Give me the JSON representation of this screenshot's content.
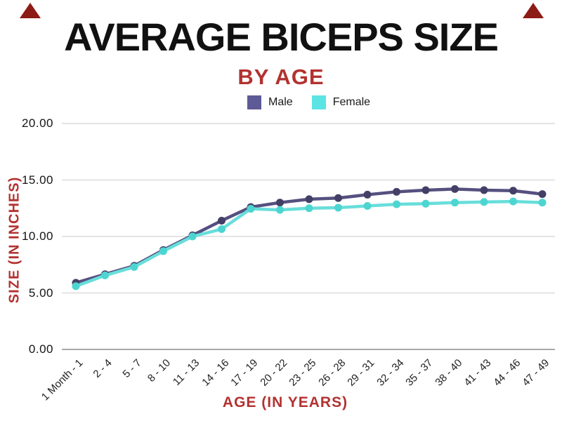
{
  "page": {
    "title": "AVERAGE BICEPS SIZE",
    "subtitle": "BY AGE",
    "title_color": "#111111",
    "accent_color": "#b23230",
    "corner_triangle_color": "#8c1c15",
    "background": "#ffffff"
  },
  "legend": {
    "items": [
      {
        "label": "Male",
        "color": "#5e5a96"
      },
      {
        "label": "Female",
        "color": "#5ce4e4"
      }
    ]
  },
  "chart_data": {
    "type": "line",
    "title": "AVERAGE BICEPS SIZE",
    "subtitle": "BY AGE",
    "xlabel": "AGE (IN YEARS)",
    "ylabel": "SIZE (IN INCHES)",
    "categories": [
      "1 Month - 1",
      "2 - 4",
      "5 - 7",
      "8 - 10",
      "11 - 13",
      "14 - 16",
      "17 - 19",
      "20 - 22",
      "23 - 25",
      "26 - 28",
      "29 - 31",
      "32 - 34",
      "35 - 37",
      "38 - 40",
      "41 - 43",
      "44 - 46",
      "47 - 49"
    ],
    "series": [
      {
        "name": "Male",
        "line_color": "#55507f",
        "point_color": "#443f66",
        "values": [
          5.9,
          6.65,
          7.4,
          8.8,
          10.1,
          11.4,
          12.6,
          13.0,
          13.3,
          13.4,
          13.7,
          13.95,
          14.1,
          14.2,
          14.1,
          14.05,
          13.75
        ]
      },
      {
        "name": "Female",
        "line_color": "#68dedb",
        "point_color": "#4dd5d1",
        "values": [
          5.6,
          6.55,
          7.3,
          8.7,
          10.0,
          10.65,
          12.45,
          12.35,
          12.5,
          12.55,
          12.7,
          12.85,
          12.9,
          13.0,
          13.05,
          13.1,
          13.0
        ]
      }
    ],
    "ylim": [
      0,
      20
    ],
    "yticks": [
      {
        "label": "20.00",
        "value": 20
      },
      {
        "label": "15.00",
        "value": 15
      },
      {
        "label": "10.00",
        "value": 10
      },
      {
        "label": "5.00",
        "value": 5
      },
      {
        "label": "0.00",
        "value": 0
      }
    ],
    "grid": true,
    "gridline_color": "#dcdcdc",
    "baseline_color": "#a9a9a9",
    "legend_position": "top"
  }
}
